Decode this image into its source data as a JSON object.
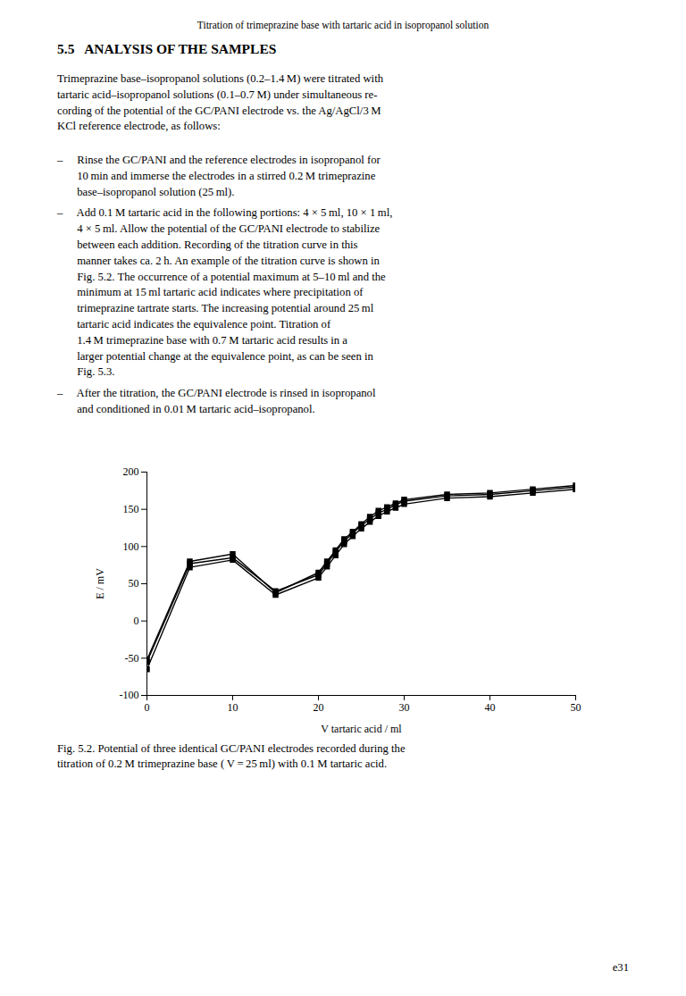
{
  "chart_data": {
    "type": "line",
    "xlabel": "V tartaric acid / ml",
    "ylabel": "E / mV",
    "x": [
      0,
      5,
      10,
      15,
      20,
      21,
      22,
      23,
      24,
      25,
      26,
      27,
      28,
      29,
      30,
      35,
      40,
      45,
      50
    ],
    "series": [
      {
        "color": "#000000",
        "marker": "square",
        "values": [
          -52,
          80,
          90,
          38,
          65,
          80,
          95,
          110,
          120,
          130,
          140,
          148,
          153,
          158,
          163,
          170,
          172,
          177,
          182
        ]
      },
      {
        "color": "#000000",
        "marker": "square",
        "values": [
          -55,
          77,
          85,
          40,
          62,
          77,
          93,
          107,
          118,
          128,
          137,
          145,
          150,
          156,
          161,
          168,
          170,
          175,
          180
        ]
      },
      {
        "color": "#000000",
        "marker": "square",
        "values": [
          -65,
          72,
          82,
          35,
          58,
          73,
          88,
          103,
          114,
          124,
          133,
          141,
          147,
          152,
          157,
          165,
          167,
          172,
          177
        ]
      }
    ],
    "xlim": [
      0,
      50
    ],
    "ylim": [
      -100,
      200
    ],
    "xticks": [
      0,
      10,
      20,
      30,
      40,
      50
    ],
    "yticks": [
      -100,
      -50,
      0,
      50,
      100,
      150,
      200
    ],
    "grid": false,
    "annotations": [
      "Titration of trimeprazine base with tartaric acid in isopropanol solution",
      "5.5   ANALYSIS OF THE SAMPLES",
      "Trimeprazine base–isopropanol solutions (0.2–1.4 M) were titrated with\ntartaric acid–isopropanol solutions (0.1–0.7 M) under simultaneous re-\ncording of the potential of the GC/PANI electrode vs. the Ag/AgCl/3 M\nKCl reference electrode, as follows:",
      "–     Rinse the GC/PANI and the reference electrodes in isopropanol for\n       10 min and immerse the electrodes in a stirred 0.2 M trimeprazine\n       base–isopropanol solution (25 ml).",
      "–     Add 0.1 M tartaric acid in the following portions: 4 × 5 ml, 10 × 1 ml,\n       4 × 5 ml. Allow the potential of the GC/PANI electrode to stabilize\n       between each addition. Recording of the titration curve in this\n       manner takes ca. 2 h. An example of the titration curve is shown in\n       Fig. 5.2. The occurrence of a potential maximum at 5–10 ml and the\n       minimum at 15 ml tartaric acid indicates where precipitation of\n       trimeprazine tartrate starts. The increasing potential around 25 ml\n       tartaric acid indicates the equivalence point. Titration of\n       1.4 M trimeprazine base with 0.7 M tartaric acid results in a\n       larger potential change at the equivalence point, as can be seen in\n       Fig. 5.3.",
      "–     After the titration, the GC/PANI electrode is rinsed in isopropanol\n       and conditioned in 0.01 M tartaric acid–isopropanol.",
      "Fig. 5.2. Potential of three identical GC/PANI electrodes recorded during the\ntitration of 0.2 M trimeprazine base ( V = 25 ml) with 0.1 M tartaric acid.",
      "e31"
    ]
  }
}
